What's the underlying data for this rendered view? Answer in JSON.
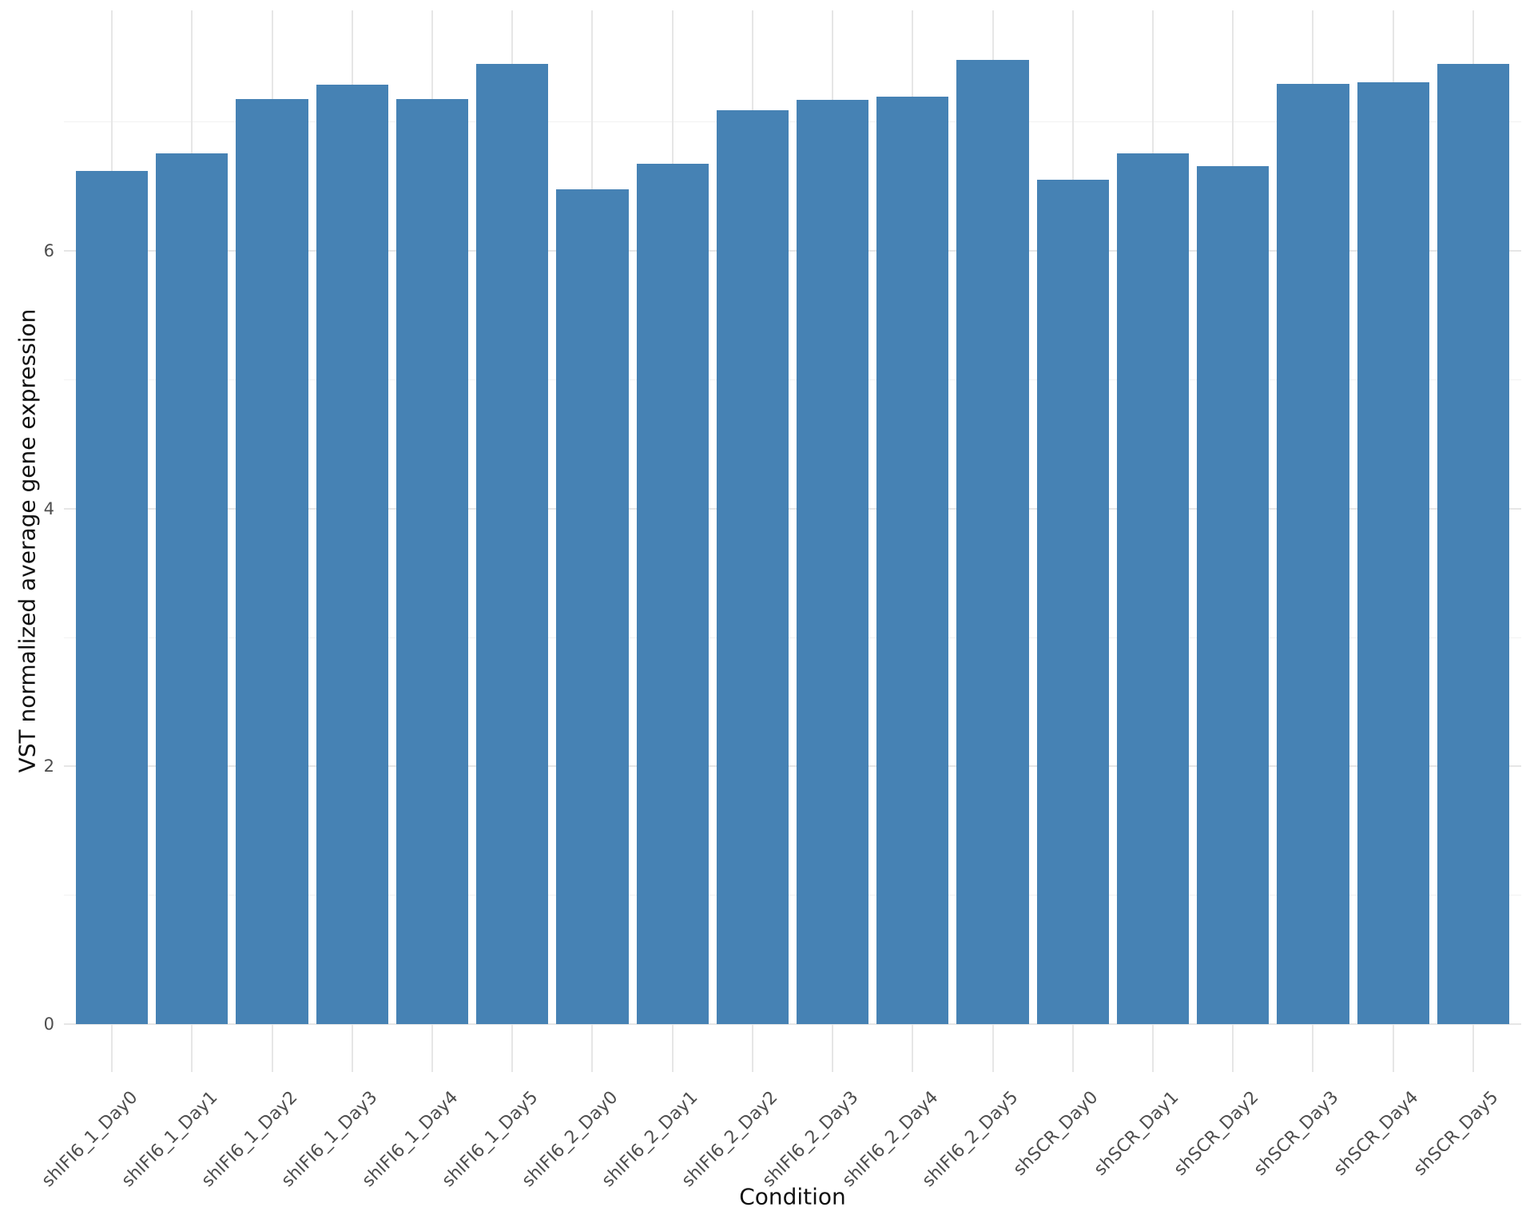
{
  "chart_data": {
    "type": "bar",
    "title": "",
    "xlabel": "Condition",
    "ylabel": "VST normalized average gene expression",
    "categories": [
      "shIFI6_1_Day0",
      "shIFI6_1_Day1",
      "shIFI6_1_Day2",
      "shIFI6_1_Day3",
      "shIFI6_1_Day4",
      "shIFI6_1_Day5",
      "shIFI6_2_Day0",
      "shIFI6_2_Day1",
      "shIFI6_2_Day2",
      "shIFI6_2_Day3",
      "shIFI6_2_Day4",
      "shIFI6_2_Day5",
      "shSCR_Day0",
      "shSCR_Day1",
      "shSCR_Day2",
      "shSCR_Day3",
      "shSCR_Day4",
      "shSCR_Day5"
    ],
    "values": [
      6.62,
      6.76,
      7.18,
      7.29,
      7.18,
      7.45,
      6.48,
      6.68,
      7.09,
      7.17,
      7.2,
      7.48,
      6.55,
      6.76,
      6.66,
      7.3,
      7.31,
      7.45
    ],
    "ylim": [
      -0.37,
      7.87
    ],
    "yticks_major": [
      0,
      2,
      4,
      6
    ],
    "yticks_minor": [
      1,
      3,
      5,
      7
    ],
    "grid": true,
    "legend": "none",
    "bar_color": "#4682B4",
    "grid_major_color": "#E6E6E6",
    "grid_minor_color": "#F2F2F2",
    "axis_text_color": "#4D4D4D",
    "axis_title_color": "#111111",
    "background_color": "#FFFFFF"
  }
}
